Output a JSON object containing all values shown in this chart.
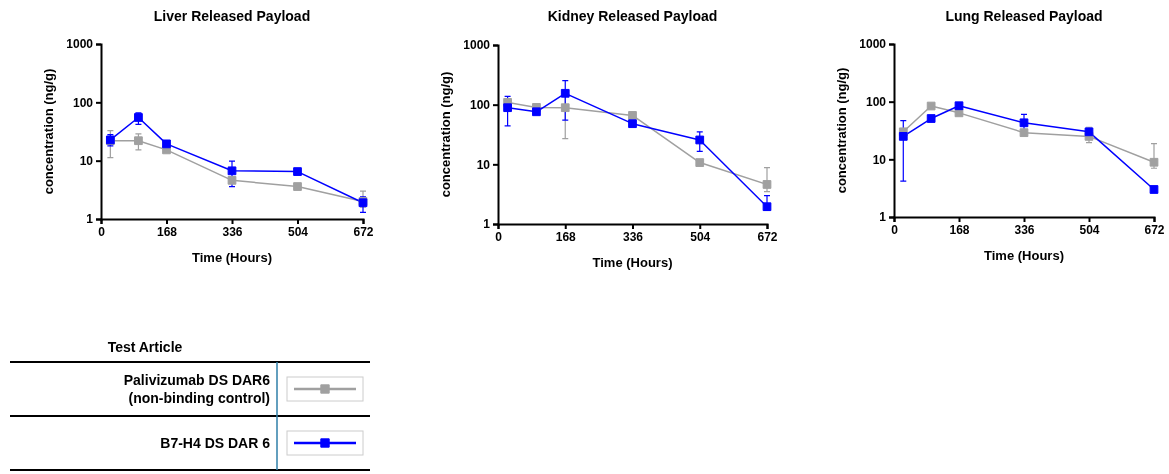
{
  "chart_data": [
    {
      "type": "line",
      "title": "Liver Released Payload",
      "xlabel": "Time (Hours)",
      "ylabel": "concentration (ng/g)",
      "log": "y",
      "xlim": [
        0,
        672
      ],
      "xticks": [
        0,
        168,
        336,
        504,
        672
      ],
      "ylim": [
        1,
        1000
      ],
      "yticks": [
        1,
        10,
        100,
        1000
      ],
      "marker": "square",
      "legend": "bottom left",
      "legend_title": "Test Article",
      "x": [
        24,
        96,
        168,
        336,
        504,
        672
      ],
      "series": [
        {
          "name": "Palivizumab DS DAR6\n(non-binding control)",
          "color": "#a0a0a0",
          "values": [
            22,
            22,
            15.3,
            4.6,
            3.6,
            2
          ],
          "errors": [
            [
              11.3,
              32.8
            ],
            [
              15.3,
              28.8
            ],
            null,
            null,
            null,
            [
              1.6,
              3.0
            ]
          ]
        },
        {
          "name": "B7-H4 DS DAR 6",
          "color": "#0000ff",
          "values": [
            22.7,
            55,
            19.4,
            6.7,
            6.5,
            1.9
          ],
          "errors": [
            [
              18,
              28
            ],
            [
              42,
              66
            ],
            null,
            [
              3.6,
              9.8
            ],
            null,
            [
              1.3,
              2.4
            ]
          ]
        }
      ]
    },
    {
      "type": "line",
      "title": "Kidney Released Payload",
      "xlabel": "Time (Hours)",
      "ylabel": "concentration (ng/g)",
      "log": "y",
      "xlim": [
        0,
        672
      ],
      "xticks": [
        0,
        168,
        336,
        504,
        672
      ],
      "ylim": [
        1,
        1000
      ],
      "yticks": [
        1,
        10,
        100,
        1000
      ],
      "marker": "square",
      "x": [
        24,
        96,
        168,
        336,
        504,
        672
      ],
      "series": [
        {
          "color": "#a0a0a0",
          "values": [
            109,
            90,
            89,
            66,
            10.7,
            4.6
          ],
          "errors": [
            null,
            null,
            [
              27,
              150
            ],
            null,
            null,
            [
              3.5,
              8.8
            ]
          ]
        },
        {
          "color": "#0000ff",
          "values": [
            89,
            76,
            155,
            48,
            25.6,
            1.95
          ],
          "errors": [
            [
              44,
              138
            ],
            null,
            [
              55,
              252
            ],
            null,
            [
              16.5,
              35
            ],
            [
              1.7,
              3
            ]
          ]
        }
      ]
    },
    {
      "type": "line",
      "title": "Lung Released Payload",
      "xlabel": "Time (Hours)",
      "ylabel": "concentration (ng/g)",
      "log": "y",
      "xlim": [
        0,
        672
      ],
      "xticks": [
        0,
        168,
        336,
        504,
        672
      ],
      "ylim": [
        1,
        1000
      ],
      "yticks": [
        1,
        10,
        100,
        1000
      ],
      "marker": "square",
      "x": [
        24,
        96,
        168,
        336,
        504,
        672
      ],
      "series": [
        {
          "color": "#a0a0a0",
          "values": [
            30,
            84,
            64,
            29,
            25,
            8.9
          ],
          "errors": [
            null,
            null,
            null,
            null,
            [
              19.5,
              36
            ],
            [
              7,
              18.7
            ]
          ]
        },
        {
          "color": "#0000ff",
          "values": [
            25,
            51,
            85,
            43,
            30,
            3.0
          ],
          "errors": [
            [
              4.2,
              47
            ],
            null,
            null,
            [
              30,
              60
            ],
            null,
            null
          ]
        }
      ]
    }
  ]
}
